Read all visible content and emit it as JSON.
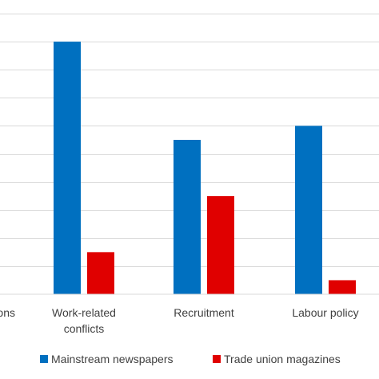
{
  "chart_data": {
    "type": "bar",
    "categories": [
      "ons",
      "Work-related conflicts",
      "Recruitment",
      "Labour policy"
    ],
    "category_label_lines": [
      [
        "ons"
      ],
      [
        "Work-related",
        "conflicts"
      ],
      [
        "Recruitment"
      ],
      [
        "Labour policy"
      ]
    ],
    "series": [
      {
        "name": "Mainstream newspapers",
        "color": "#0070C0",
        "values": [
          null,
          9.0,
          5.5,
          6.0
        ]
      },
      {
        "name": "Trade union magazines",
        "color": "#E00000",
        "values": [
          null,
          1.5,
          3.5,
          0.5
        ]
      }
    ],
    "ylim": [
      0,
      10
    ],
    "grid": true,
    "legend_position": "bottom"
  }
}
